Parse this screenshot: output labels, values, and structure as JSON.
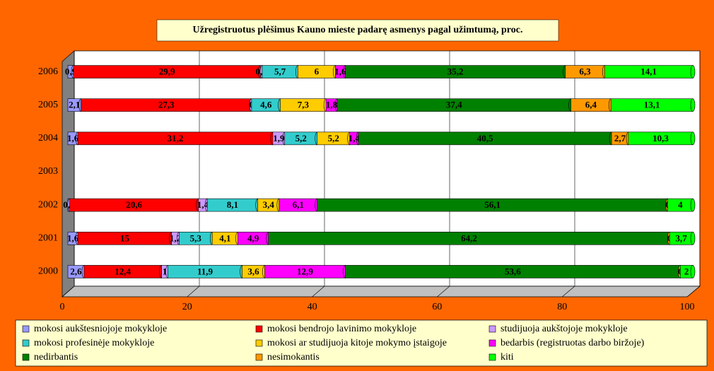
{
  "chart_data": {
    "type": "bar",
    "orientation": "horizontal",
    "stacked": true,
    "title": "Užregistruotus plėšimus Kauno mieste padarę asmenys pagal užimtumą, proc.",
    "categories": [
      "2000",
      "2001",
      "2002",
      "2003",
      "2004",
      "2005",
      "2006"
    ],
    "series": [
      {
        "name": "mokosi aukštesniojoje mokykloje",
        "color": "#9999ff",
        "values": [
          2.6,
          1.6,
          0.3,
          null,
          1.6,
          2.1,
          0.9
        ],
        "value_labels": [
          "2,6",
          "1,6",
          "0,3",
          null,
          "1,6",
          "2,1",
          "0,9"
        ]
      },
      {
        "name": "mokosi bendrojo lavinimo mokykloje",
        "color": "#ff0000",
        "values": [
          12.4,
          15,
          20.6,
          null,
          31.2,
          27.3,
          29.9
        ],
        "value_labels": [
          "12,4",
          "15",
          "20,6",
          null,
          "31,2",
          "27,3",
          "29,9"
        ]
      },
      {
        "name": "studijuoja aukštojoje mokykloje",
        "color": "#cc99ff",
        "values": [
          1,
          1.2,
          1.4,
          null,
          1.9,
          0,
          0.3
        ],
        "value_labels": [
          "1",
          "1,2",
          "1,4",
          null,
          "1,9",
          "0",
          "0,3"
        ]
      },
      {
        "name": "mokosi profesinėje mokykloje",
        "color": "#33cccc",
        "values": [
          11.9,
          5.3,
          8.1,
          null,
          5.2,
          4.6,
          5.7
        ],
        "value_labels": [
          "11,9",
          "5,3",
          "8,1",
          null,
          "5,2",
          "4,6",
          "5,7"
        ]
      },
      {
        "name": "mokosi ar studijuoja kitoje mokymo įstaigoje",
        "color": "#ffcc00",
        "values": [
          3.6,
          4.1,
          3.4,
          null,
          5.2,
          7.3,
          6
        ],
        "value_labels": [
          "3,6",
          "4,1",
          "3,4",
          null,
          "5,2",
          "7,3",
          "6"
        ]
      },
      {
        "name": "bedarbis (registruotas darbo biržoje)",
        "color": "#ff00ff",
        "values": [
          12.9,
          4.9,
          6.1,
          null,
          1.4,
          1.8,
          1.6
        ],
        "value_labels": [
          "12,9",
          "4,9",
          "6,1",
          null,
          "1,4",
          "1,8",
          "1,6"
        ]
      },
      {
        "name": "nedirbantis",
        "color": "#008000",
        "values": [
          53.6,
          64.2,
          56.1,
          null,
          40.5,
          37.4,
          35.2
        ],
        "value_labels": [
          "53,6",
          "64,2",
          "56,1",
          null,
          "40,5",
          "37,4",
          "35,2"
        ]
      },
      {
        "name": "nesimokantis",
        "color": "#ff9900",
        "values": [
          0,
          0,
          0,
          null,
          2.7,
          6.4,
          6.3
        ],
        "value_labels": [
          "0",
          "0",
          "0",
          null,
          "2,7",
          "6,4",
          "6,3"
        ]
      },
      {
        "name": "kiti",
        "color": "#00ff00",
        "values": [
          2,
          3.7,
          4,
          null,
          10.3,
          13.1,
          14.1
        ],
        "value_labels": [
          "2",
          "3,7",
          "4",
          null,
          "10,3",
          "13,1",
          "14,1"
        ]
      }
    ],
    "xlim": [
      0,
      100
    ],
    "xticks": [
      0,
      20,
      40,
      60,
      80,
      100
    ],
    "grid": true,
    "legend": "bottom"
  }
}
